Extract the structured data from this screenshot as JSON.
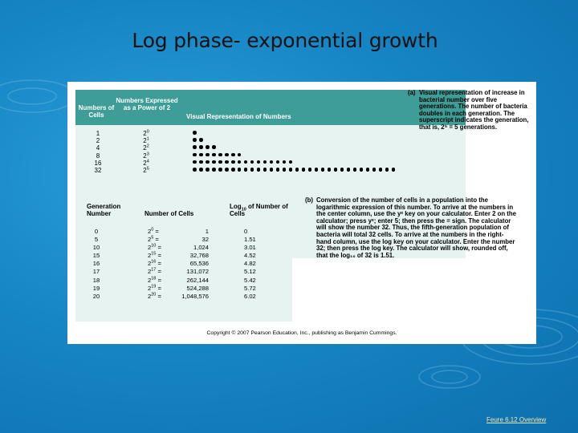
{
  "slide": {
    "title": "Log phase- exponential growth",
    "footer_link": "Feure 6.12 Overview"
  },
  "panel_a": {
    "headers": {
      "col1": "Numbers of Cells",
      "col2": "Numbers Expressed as a Power of 2",
      "col3": "Visual Representation of Numbers"
    },
    "rows": [
      {
        "cells": "1",
        "base": "2",
        "exp": "0",
        "dots": 1
      },
      {
        "cells": "2",
        "base": "2",
        "exp": "1",
        "dots": 2
      },
      {
        "cells": "4",
        "base": "2",
        "exp": "2",
        "dots": 4
      },
      {
        "cells": "8",
        "base": "2",
        "exp": "3",
        "dots": 8
      },
      {
        "cells": "16",
        "base": "2",
        "exp": "4",
        "dots": 16
      },
      {
        "cells": "32",
        "base": "2",
        "exp": "5",
        "dots": 32
      }
    ],
    "caption_tag": "(a)",
    "caption": "Visual representation of increase in bacterial number over five generations. The number of bacteria doubles in each generation. The superscript indicates the generation, that is, 2⁵ = 5 generations."
  },
  "panel_b": {
    "headers": {
      "col1": "Generation Number",
      "col2": "Number of Cells",
      "col3_log": "Log",
      "col3_sub": "10",
      "col3_rest": "of Number of Cells"
    },
    "rows": [
      {
        "gen": "0",
        "exp": "0",
        "cells": "1",
        "log": "0"
      },
      {
        "gen": "5",
        "exp": "5",
        "cells": "32",
        "log": "1.51"
      },
      {
        "gen": "10",
        "exp": "10",
        "cells": "1,024",
        "log": "3.01"
      },
      {
        "gen": "15",
        "exp": "15",
        "cells": "32,768",
        "log": "4.52"
      },
      {
        "gen": "16",
        "exp": "16",
        "cells": "65,536",
        "log": "4.82"
      },
      {
        "gen": "17",
        "exp": "17",
        "cells": "131,072",
        "log": "5.12"
      },
      {
        "gen": "18",
        "exp": "18",
        "cells": "262,144",
        "log": "5.42"
      },
      {
        "gen": "19",
        "exp": "19",
        "cells": "524,288",
        "log": "5.72"
      },
      {
        "gen": "20",
        "exp": "20",
        "cells": "1,048,576",
        "log": "6.02"
      }
    ],
    "caption_tag": "(b)",
    "caption": "Conversion of the number of cells in a population into the logarithmic expression of this number. To arrive at the numbers in the center column, use the yˣ key on your calculator. Enter 2 on the calculator; press yˣ; enter 5; then press the = sign. The calculator will show the number 32. Thus, the fifth-generation population of bacteria will total 32 cells. To arrive at the numbers in the right-hand column, use the log key on your calculator. Enter the number 32; then press the log key. The calculator will show, rounded off, that the log₁₀ of 32 is 1.51."
  },
  "copyright": "Copyright © 2007 Pearson Education, Inc., publishing as Benjamin Cummings."
}
